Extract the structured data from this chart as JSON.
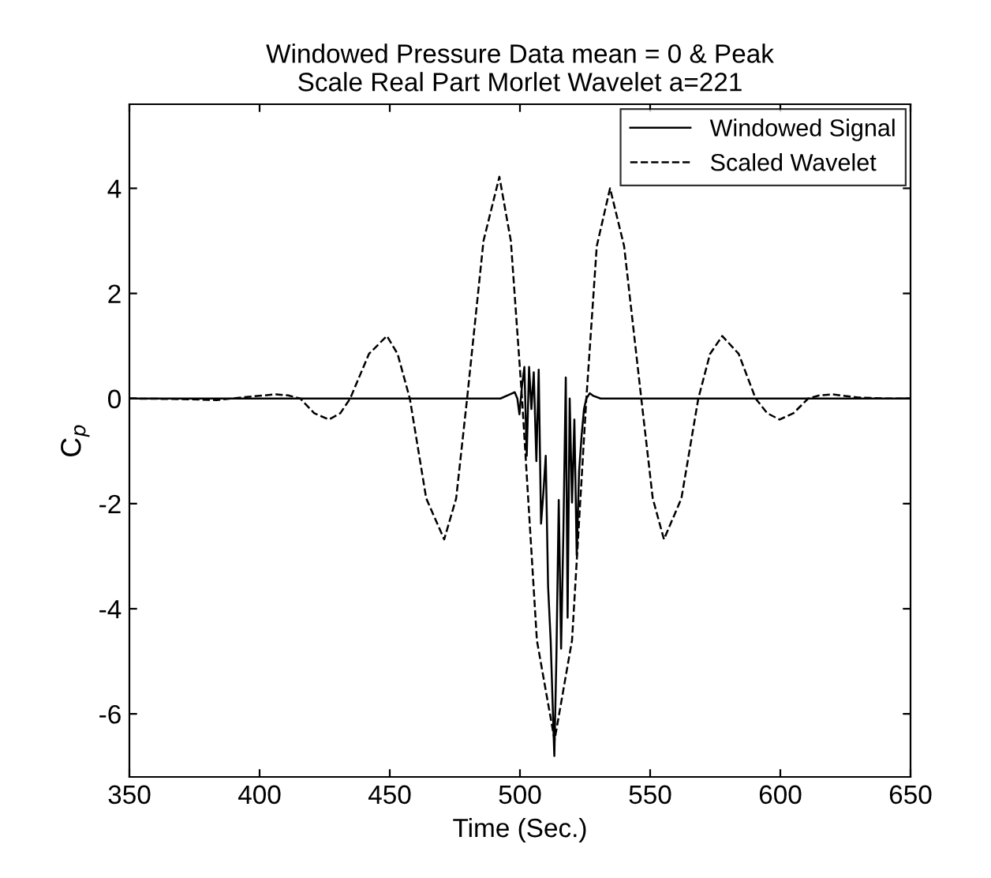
{
  "chart_data": {
    "type": "line",
    "title": "Windowed Pressure Data mean = 0 & Peak\nScale Real Part Morlet Wavelet a=221",
    "xlabel": "Time (Sec.)",
    "ylabel": "C$_{p}$",
    "xlim": [
      350,
      650
    ],
    "ylim": [
      -7.2,
      5.6
    ],
    "xticks": [
      350,
      400,
      450,
      500,
      550,
      600,
      650
    ],
    "yticks": [
      -6,
      -4,
      -2,
      0,
      2,
      4
    ],
    "grid": false,
    "legend": "top right",
    "marker": "none",
    "series": [
      {
        "name": "Windowed Signal",
        "color": "#000000",
        "line_style": "solid",
        "x": [
          350,
          492.5,
          496.2,
          498,
          499,
          499.8,
          500.8,
          501.7,
          502.6,
          503.5,
          504.4,
          505.3,
          506.3,
          507.2,
          508.1,
          509,
          509.9,
          510.8,
          511.8,
          512.7,
          513.2,
          514,
          514.9,
          515.8,
          516.7,
          517.6,
          518.3,
          519.1,
          520,
          520.9,
          521.8,
          522.7,
          523.7,
          524.6,
          525.5,
          526.8,
          528.2,
          531,
          650
        ],
        "values": [
          0,
          0,
          0.08,
          0.12,
          0,
          -0.3,
          0.25,
          0.6,
          -1.09,
          0.6,
          -0.2,
          0.5,
          -1.19,
          0.55,
          -2.38,
          -1.79,
          -1.09,
          -3.57,
          -4.61,
          -6.05,
          -6.8,
          -4.91,
          -1.93,
          -4.76,
          -2.48,
          0.4,
          -4.17,
          0,
          -1.98,
          -0.4,
          -2.98,
          -1.39,
          -0.69,
          -0.2,
          0,
          0.1,
          0.05,
          0,
          0
        ]
      },
      {
        "name": "Scaled Wavelet",
        "color": "#000000",
        "line_style": "dashed",
        "x": [
          350,
          370,
          383.5,
          395,
          406.4,
          411,
          415.6,
          421,
          426.6,
          431,
          434.8,
          442,
          448.9,
          453,
          457.7,
          464,
          470.9,
          475.5,
          479.7,
          486,
          492.1,
          496.5,
          500.8,
          506.5,
          513.3,
          520,
          525.5,
          529.5,
          534.6,
          540,
          546.6,
          551,
          555.3,
          562,
          568.5,
          573,
          577.7,
          584,
          590.5,
          595,
          599.7,
          605,
          610.7,
          615,
          619.8,
          630,
          640,
          650
        ],
        "values": [
          0,
          -0.01,
          -0.03,
          0.03,
          0.08,
          0.06,
          0,
          -0.28,
          -0.4,
          -0.28,
          0,
          0.85,
          1.19,
          0.85,
          0,
          -1.9,
          -2.68,
          -1.9,
          0,
          3.0,
          4.22,
          3.0,
          0,
          -4.6,
          -6.5,
          -4.6,
          0,
          2.9,
          4.0,
          2.9,
          0,
          -1.9,
          -2.68,
          -1.9,
          0,
          0.85,
          1.19,
          0.85,
          0,
          -0.28,
          -0.4,
          -0.28,
          0,
          0.06,
          0.08,
          0.02,
          0,
          0
        ]
      }
    ]
  }
}
